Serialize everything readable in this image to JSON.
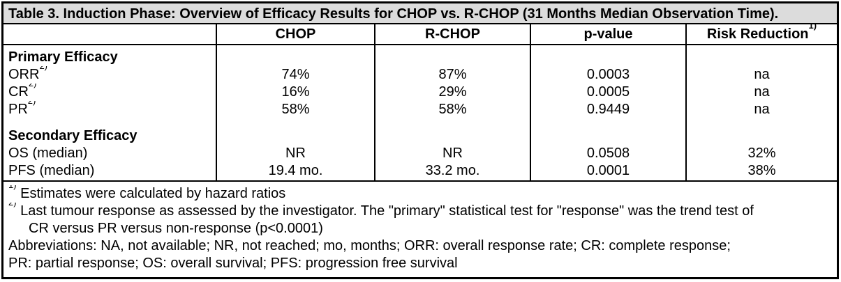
{
  "table": {
    "title": "Table 3. Induction Phase: Overview of Efficacy Results for CHOP vs. R-CHOP (31 Months Median Observation Time).",
    "header": {
      "col0": "",
      "col1": "CHOP",
      "col2": "R-CHOP",
      "col3": "p-value",
      "col4": "Risk Reduction",
      "col4_sup": "1)"
    },
    "sections": [
      {
        "header": "Primary Efficacy",
        "rows": [
          {
            "label": "ORR",
            "sup": "2)",
            "chop": "74%",
            "rchop": "87%",
            "pvalue": "0.0003",
            "risk": "na"
          },
          {
            "label": "CR",
            "sup": "2)",
            "chop": "16%",
            "rchop": "29%",
            "pvalue": "0.0005",
            "risk": "na"
          },
          {
            "label": "PR",
            "sup": "2)",
            "chop": "58%",
            "rchop": "58%",
            "pvalue": "0.9449",
            "risk": "na"
          }
        ]
      },
      {
        "header": "Secondary Efficacy",
        "rows": [
          {
            "label": "OS (median)",
            "sup": "",
            "chop": "NR",
            "rchop": "NR",
            "pvalue": "0.0508",
            "risk": "32%"
          },
          {
            "label": "PFS (median)",
            "sup": "",
            "chop": "19.4 mo.",
            "rchop": "33.2 mo.",
            "pvalue": "0.0001",
            "risk": "38%"
          }
        ]
      }
    ],
    "footnotes": {
      "fn1_sup": "1)",
      "fn1_text": "Estimates were calculated by hazard ratios",
      "fn2_sup": "2)",
      "fn2_line1": "Last tumour response as assessed by the investigator. The \"primary\" statistical test for \"response\" was the trend test of",
      "fn2_line2": "CR versus PR versus non-response (p<0.0001)",
      "abbrev_line1": "Abbreviations: NA, not available; NR, not reached; mo, months; ORR: overall response rate; CR: complete response;",
      "abbrev_line2": "PR: partial response; OS: overall survival; PFS: progression free survival"
    },
    "colors": {
      "title_bg": "#dcdcdc",
      "border": "#000000",
      "text": "#000000",
      "background": "#ffffff"
    }
  }
}
